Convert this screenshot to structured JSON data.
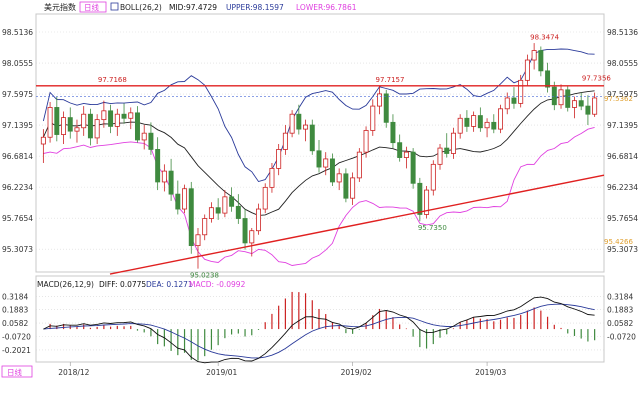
{
  "header": {
    "symbol": "美元指数",
    "period_badge": "日线",
    "boll_label": "BOLL(26,2)",
    "mid_label": "MID:97.4729",
    "upper_label": "UPPER:98.1597",
    "lower_label": "LOWER:96.7861"
  },
  "macd_header": {
    "title": "MACD(26,12,9)",
    "diff_label": "DIFF: 0.0775",
    "dea_label": "DEA: 0.1271",
    "macd_label": "MACD: -0.0992"
  },
  "footer": {
    "period_badge": "日线",
    "date_labels": [
      "2018/12",
      "2019/01",
      "2019/02",
      "2019/03"
    ]
  },
  "colors": {
    "up": "#cc2222",
    "down": "#3f8a3f",
    "upper_band": "#2a3a9a",
    "mid_line": "#222222",
    "lower_band": "#e040e0",
    "resistance": "#e02020",
    "support": "#e02020",
    "grid": "#d8d8d8",
    "dea": "#2a3a9a",
    "diff": "#111111"
  },
  "chart_data": [
    {
      "type": "candlestick",
      "name": "美元指数 日线",
      "y_ticks_left": [
        "98.5136",
        "98.0555",
        "97.5975",
        "97.1395",
        "96.6814",
        "96.2234",
        "95.7654",
        "95.3073"
      ],
      "y_ticks_right": [
        "98.5136",
        "98.0555",
        "97.5975",
        "97.1395",
        "96.6814",
        "96.2234",
        "95.7654",
        "95.3073"
      ],
      "ylim": [
        95.0,
        98.75
      ],
      "x_labels": [
        "2018/12",
        "2019/01",
        "2019/02",
        "2019/03"
      ],
      "annotations": [
        {
          "text": "97.7168",
          "value": 97.7168
        },
        {
          "text": "95.0238",
          "value": 95.0238
        },
        {
          "text": "97.7157",
          "value": 97.7157
        },
        {
          "text": "95.7350",
          "value": 95.735
        },
        {
          "text": "98.3474",
          "value": 98.3474
        },
        {
          "text": "97.7356",
          "value": 97.7356
        },
        {
          "text": "97.5362",
          "value": 97.5362
        },
        {
          "text": "95.4266",
          "value": 95.4266
        }
      ],
      "horizontal_lines": [
        {
          "name": "resistance",
          "value": 97.72
        }
      ],
      "trend_lines": [
        {
          "name": "support",
          "from": [
            0,
            94.94
          ],
          "to": [
            78,
            96.4
          ]
        }
      ],
      "candles": [
        {
          "o": 96.86,
          "h": 97.08,
          "l": 96.58,
          "c": 96.96
        },
        {
          "o": 96.96,
          "h": 97.48,
          "l": 96.88,
          "c": 97.4
        },
        {
          "o": 97.4,
          "h": 97.56,
          "l": 96.9,
          "c": 97.0
        },
        {
          "o": 97.0,
          "h": 97.34,
          "l": 96.86,
          "c": 97.25
        },
        {
          "o": 97.25,
          "h": 97.4,
          "l": 96.94,
          "c": 97.05
        },
        {
          "o": 97.05,
          "h": 97.22,
          "l": 96.88,
          "c": 97.1
        },
        {
          "o": 97.1,
          "h": 97.42,
          "l": 96.98,
          "c": 97.3
        },
        {
          "o": 97.3,
          "h": 97.38,
          "l": 96.84,
          "c": 96.95
        },
        {
          "o": 96.95,
          "h": 97.3,
          "l": 96.86,
          "c": 97.22
        },
        {
          "o": 97.22,
          "h": 97.5,
          "l": 97.1,
          "c": 97.35
        },
        {
          "o": 97.35,
          "h": 97.44,
          "l": 97.02,
          "c": 97.12
        },
        {
          "o": 97.12,
          "h": 97.38,
          "l": 96.98,
          "c": 97.3
        },
        {
          "o": 97.3,
          "h": 97.46,
          "l": 97.16,
          "c": 97.24
        },
        {
          "o": 97.24,
          "h": 97.4,
          "l": 97.08,
          "c": 97.32
        },
        {
          "o": 97.32,
          "h": 97.42,
          "l": 96.88,
          "c": 96.92
        },
        {
          "o": 96.92,
          "h": 97.14,
          "l": 96.78,
          "c": 97.02
        },
        {
          "o": 97.02,
          "h": 97.18,
          "l": 96.7,
          "c": 96.78
        },
        {
          "o": 96.78,
          "h": 96.96,
          "l": 96.18,
          "c": 96.3
        },
        {
          "o": 96.3,
          "h": 96.56,
          "l": 96.16,
          "c": 96.46
        },
        {
          "o": 96.46,
          "h": 96.64,
          "l": 96.02,
          "c": 96.12
        },
        {
          "o": 96.12,
          "h": 96.32,
          "l": 95.82,
          "c": 95.9
        },
        {
          "o": 95.9,
          "h": 96.26,
          "l": 95.84,
          "c": 96.2
        },
        {
          "o": 96.2,
          "h": 96.3,
          "l": 95.24,
          "c": 95.36
        },
        {
          "o": 95.36,
          "h": 95.62,
          "l": 95.02,
          "c": 95.52
        },
        {
          "o": 95.52,
          "h": 95.82,
          "l": 95.44,
          "c": 95.76
        },
        {
          "o": 95.76,
          "h": 96.0,
          "l": 95.7,
          "c": 95.92
        },
        {
          "o": 95.92,
          "h": 96.06,
          "l": 95.74,
          "c": 95.84
        },
        {
          "o": 95.84,
          "h": 96.18,
          "l": 95.78,
          "c": 96.08
        },
        {
          "o": 96.08,
          "h": 96.22,
          "l": 95.86,
          "c": 95.94
        },
        {
          "o": 95.94,
          "h": 96.12,
          "l": 95.68,
          "c": 95.76
        },
        {
          "o": 95.76,
          "h": 95.9,
          "l": 95.3,
          "c": 95.4
        },
        {
          "o": 95.4,
          "h": 95.62,
          "l": 95.2,
          "c": 95.58
        },
        {
          "o": 95.58,
          "h": 95.98,
          "l": 95.52,
          "c": 95.9
        },
        {
          "o": 95.9,
          "h": 96.28,
          "l": 95.84,
          "c": 96.22
        },
        {
          "o": 96.22,
          "h": 96.58,
          "l": 96.14,
          "c": 96.5
        },
        {
          "o": 96.5,
          "h": 96.86,
          "l": 96.4,
          "c": 96.78
        },
        {
          "o": 96.78,
          "h": 97.14,
          "l": 96.7,
          "c": 97.02
        },
        {
          "o": 97.02,
          "h": 97.36,
          "l": 96.96,
          "c": 97.3
        },
        {
          "o": 97.3,
          "h": 97.44,
          "l": 97.0,
          "c": 97.08
        },
        {
          "o": 97.08,
          "h": 97.22,
          "l": 96.9,
          "c": 97.14
        },
        {
          "o": 97.14,
          "h": 97.22,
          "l": 96.7,
          "c": 96.76
        },
        {
          "o": 96.76,
          "h": 96.92,
          "l": 96.44,
          "c": 96.52
        },
        {
          "o": 96.52,
          "h": 96.74,
          "l": 96.4,
          "c": 96.64
        },
        {
          "o": 96.64,
          "h": 96.72,
          "l": 96.24,
          "c": 96.3
        },
        {
          "o": 96.3,
          "h": 96.5,
          "l": 96.18,
          "c": 96.42
        },
        {
          "o": 96.42,
          "h": 96.5,
          "l": 96.0,
          "c": 96.06
        },
        {
          "o": 96.06,
          "h": 96.44,
          "l": 95.96,
          "c": 96.36
        },
        {
          "o": 96.36,
          "h": 96.8,
          "l": 96.3,
          "c": 96.74
        },
        {
          "o": 96.74,
          "h": 97.12,
          "l": 96.66,
          "c": 97.06
        },
        {
          "o": 97.06,
          "h": 97.52,
          "l": 96.98,
          "c": 97.42
        },
        {
          "o": 97.42,
          "h": 97.72,
          "l": 97.3,
          "c": 97.6
        },
        {
          "o": 97.6,
          "h": 97.66,
          "l": 97.1,
          "c": 97.18
        },
        {
          "o": 97.18,
          "h": 97.3,
          "l": 96.8,
          "c": 96.88
        },
        {
          "o": 96.88,
          "h": 97.0,
          "l": 96.6,
          "c": 96.66
        },
        {
          "o": 96.66,
          "h": 96.82,
          "l": 96.5,
          "c": 96.74
        },
        {
          "o": 96.74,
          "h": 96.8,
          "l": 96.2,
          "c": 96.28
        },
        {
          "o": 96.28,
          "h": 96.36,
          "l": 95.72,
          "c": 95.82
        },
        {
          "o": 95.82,
          "h": 96.24,
          "l": 95.76,
          "c": 96.18
        },
        {
          "o": 96.18,
          "h": 96.62,
          "l": 96.1,
          "c": 96.56
        },
        {
          "o": 96.56,
          "h": 96.86,
          "l": 96.48,
          "c": 96.8
        },
        {
          "o": 96.8,
          "h": 97.02,
          "l": 96.66,
          "c": 96.72
        },
        {
          "o": 96.72,
          "h": 97.1,
          "l": 96.64,
          "c": 97.02
        },
        {
          "o": 97.02,
          "h": 97.3,
          "l": 96.94,
          "c": 97.24
        },
        {
          "o": 97.24,
          "h": 97.36,
          "l": 97.04,
          "c": 97.12
        },
        {
          "o": 97.12,
          "h": 97.34,
          "l": 97.04,
          "c": 97.28
        },
        {
          "o": 97.28,
          "h": 97.4,
          "l": 97.04,
          "c": 97.1
        },
        {
          "o": 97.1,
          "h": 97.24,
          "l": 96.96,
          "c": 97.18
        },
        {
          "o": 97.18,
          "h": 97.3,
          "l": 97.02,
          "c": 97.08
        },
        {
          "o": 97.08,
          "h": 97.44,
          "l": 97.02,
          "c": 97.38
        },
        {
          "o": 97.38,
          "h": 97.62,
          "l": 97.3,
          "c": 97.54
        },
        {
          "o": 97.54,
          "h": 97.7,
          "l": 97.38,
          "c": 97.46
        },
        {
          "o": 97.46,
          "h": 97.88,
          "l": 97.4,
          "c": 97.8
        },
        {
          "o": 97.8,
          "h": 98.18,
          "l": 97.72,
          "c": 98.1
        },
        {
          "o": 98.1,
          "h": 98.35,
          "l": 97.96,
          "c": 98.24
        },
        {
          "o": 98.24,
          "h": 98.3,
          "l": 97.86,
          "c": 97.94
        },
        {
          "o": 97.94,
          "h": 98.06,
          "l": 97.62,
          "c": 97.7
        },
        {
          "o": 97.7,
          "h": 97.78,
          "l": 97.36,
          "c": 97.44
        },
        {
          "o": 97.44,
          "h": 97.74,
          "l": 97.38,
          "c": 97.66
        },
        {
          "o": 97.66,
          "h": 97.72,
          "l": 97.34,
          "c": 97.4
        },
        {
          "o": 97.4,
          "h": 97.56,
          "l": 97.24,
          "c": 97.5
        },
        {
          "o": 97.5,
          "h": 97.62,
          "l": 97.36,
          "c": 97.42
        },
        {
          "o": 97.42,
          "h": 97.58,
          "l": 97.14,
          "c": 97.3
        },
        {
          "o": 97.3,
          "h": 97.62,
          "l": 97.26,
          "c": 97.54
        }
      ]
    },
    {
      "type": "bar",
      "name": "MACD",
      "y_ticks_left": [
        "0.3184",
        "0.1883",
        "0.0582",
        "-0.0720",
        "-0.2021"
      ],
      "y_ticks_right": [
        "0.3184",
        "0.1883",
        "0.0582",
        "-0.0720"
      ],
      "ylim": [
        -0.3,
        0.36
      ],
      "series": [
        {
          "name": "DIFF",
          "type": "line"
        },
        {
          "name": "DEA",
          "type": "line"
        },
        {
          "name": "MACD",
          "type": "bar"
        }
      ]
    }
  ]
}
